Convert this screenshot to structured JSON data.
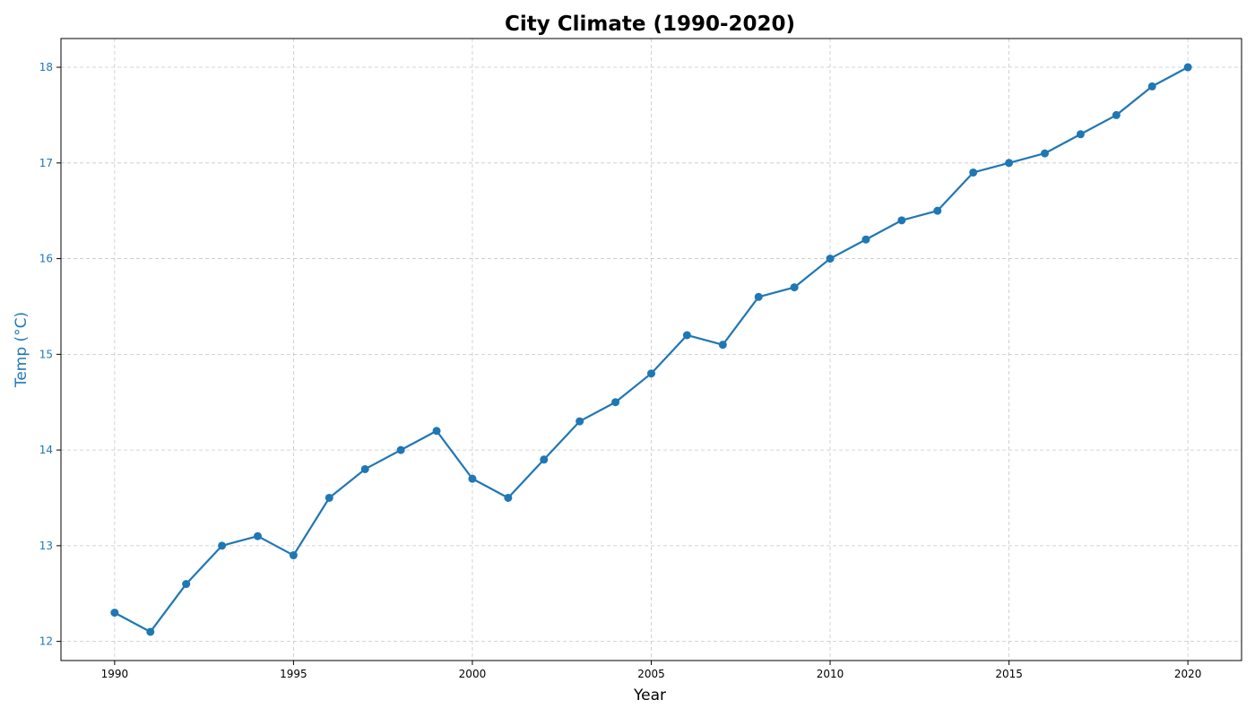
{
  "chart_data": {
    "type": "line",
    "title": "City Climate (1990-2020)",
    "xlabel": "Year",
    "ylabel": "Temp (°C)",
    "xlim": [
      1988.5,
      2021.5
    ],
    "ylim": [
      11.8,
      18.3
    ],
    "xticks": [
      1990,
      1995,
      2000,
      2005,
      2010,
      2015,
      2020
    ],
    "yticks": [
      12,
      13,
      14,
      15,
      16,
      17,
      18
    ],
    "grid": true,
    "series": [
      {
        "color": "#1f77b4",
        "marker": "circle",
        "x": [
          1990,
          1991,
          1992,
          1993,
          1994,
          1995,
          1996,
          1997,
          1998,
          1999,
          2000,
          2001,
          2002,
          2003,
          2004,
          2005,
          2006,
          2007,
          2008,
          2009,
          2010,
          2011,
          2012,
          2013,
          2014,
          2015,
          2016,
          2017,
          2018,
          2019,
          2020
        ],
        "y": [
          12.3,
          12.1,
          12.6,
          13.0,
          13.1,
          12.9,
          13.5,
          13.8,
          14.0,
          14.2,
          13.7,
          13.5,
          13.9,
          14.3,
          14.5,
          14.8,
          15.2,
          15.1,
          15.6,
          15.7,
          16.0,
          16.2,
          16.4,
          16.5,
          16.9,
          17.0,
          17.1,
          17.3,
          17.5,
          17.8,
          18.0
        ]
      }
    ],
    "colors": {
      "ylabel": "#1f77b4",
      "yticks": "#1f77b4",
      "xlabel": "#000000",
      "xticks": "#000000"
    }
  }
}
